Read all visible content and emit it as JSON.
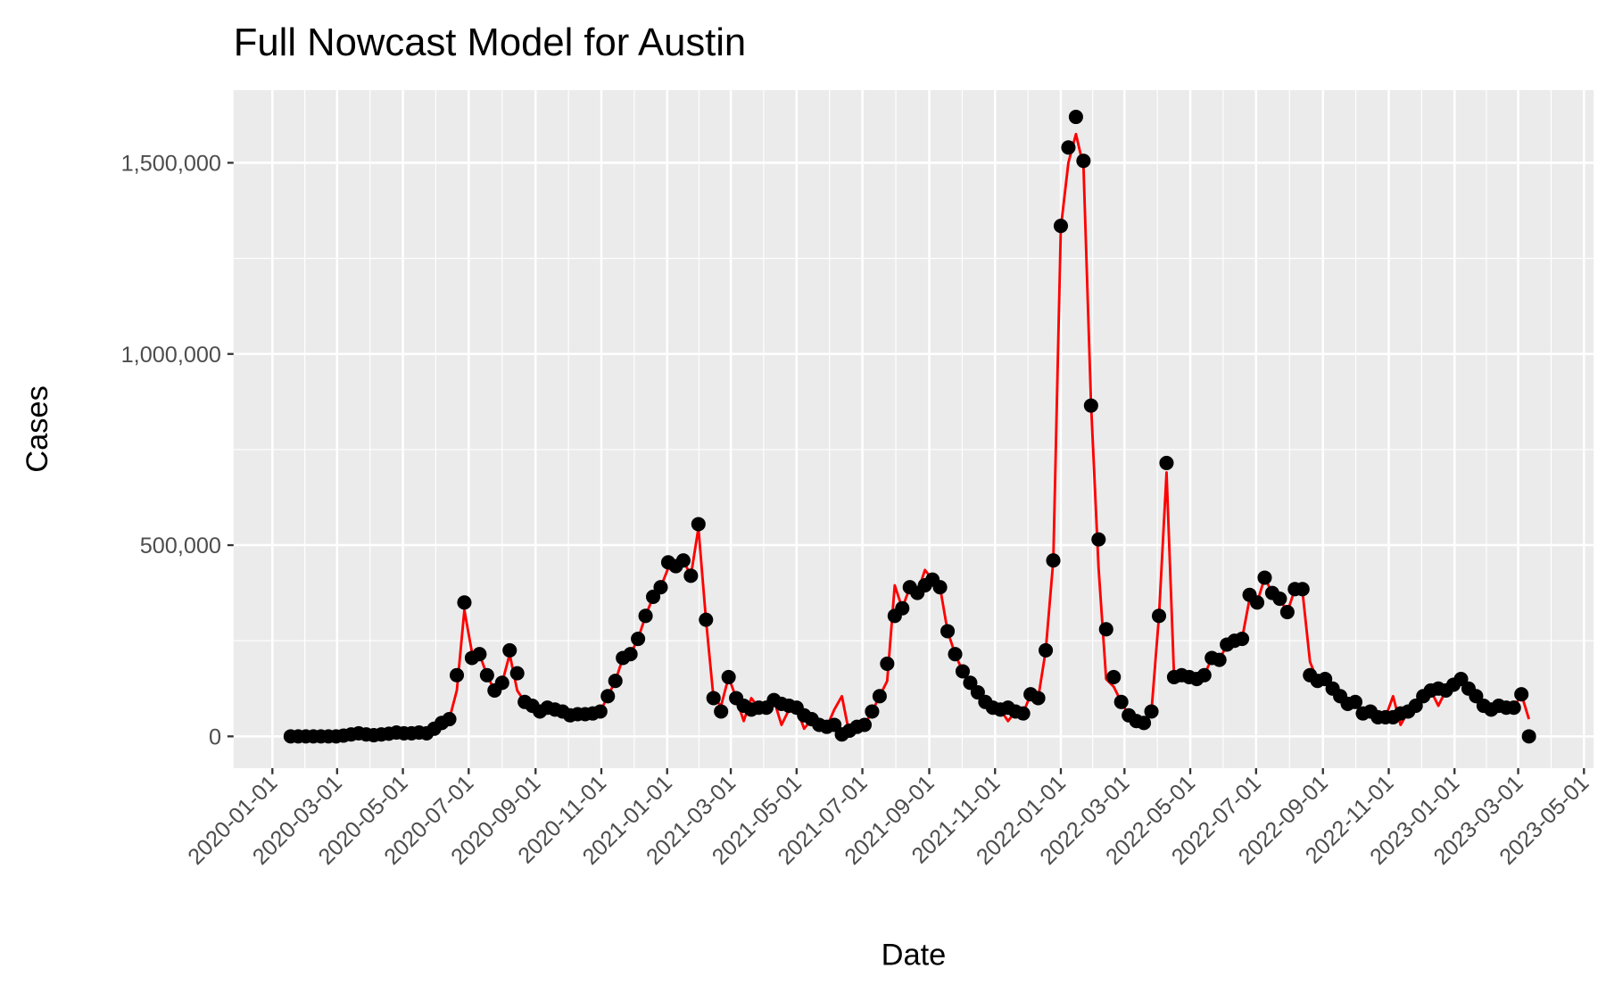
{
  "chart_data": {
    "type": "line",
    "title": "Full Nowcast Model for Austin",
    "x_label": "Date",
    "y_label": "Cases",
    "grid": true,
    "x": [
      "2020-01-18",
      "2020-01-25",
      "2020-02-01",
      "2020-02-08",
      "2020-02-15",
      "2020-02-22",
      "2020-02-29",
      "2020-03-07",
      "2020-03-14",
      "2020-03-21",
      "2020-03-28",
      "2020-04-04",
      "2020-04-11",
      "2020-04-18",
      "2020-04-25",
      "2020-05-02",
      "2020-05-09",
      "2020-05-16",
      "2020-05-23",
      "2020-05-30",
      "2020-06-06",
      "2020-06-13",
      "2020-06-20",
      "2020-06-27",
      "2020-07-04",
      "2020-07-11",
      "2020-07-18",
      "2020-07-25",
      "2020-08-01",
      "2020-08-08",
      "2020-08-15",
      "2020-08-22",
      "2020-08-29",
      "2020-09-05",
      "2020-09-12",
      "2020-09-19",
      "2020-09-26",
      "2020-10-03",
      "2020-10-10",
      "2020-10-17",
      "2020-10-24",
      "2020-10-31",
      "2020-11-07",
      "2020-11-14",
      "2020-11-21",
      "2020-11-28",
      "2020-12-05",
      "2020-12-12",
      "2020-12-19",
      "2020-12-26",
      "2021-01-02",
      "2021-01-09",
      "2021-01-16",
      "2021-01-23",
      "2021-01-30",
      "2021-02-06",
      "2021-02-13",
      "2021-02-20",
      "2021-02-27",
      "2021-03-06",
      "2021-03-13",
      "2021-03-20",
      "2021-03-27",
      "2021-04-03",
      "2021-04-10",
      "2021-04-17",
      "2021-04-24",
      "2021-05-01",
      "2021-05-08",
      "2021-05-15",
      "2021-05-22",
      "2021-05-29",
      "2021-06-05",
      "2021-06-12",
      "2021-06-19",
      "2021-06-26",
      "2021-07-03",
      "2021-07-10",
      "2021-07-17",
      "2021-07-24",
      "2021-07-31",
      "2021-08-07",
      "2021-08-14",
      "2021-08-21",
      "2021-08-28",
      "2021-09-04",
      "2021-09-11",
      "2021-09-18",
      "2021-09-25",
      "2021-10-02",
      "2021-10-09",
      "2021-10-16",
      "2021-10-23",
      "2021-10-30",
      "2021-11-06",
      "2021-11-13",
      "2021-11-20",
      "2021-11-27",
      "2021-12-04",
      "2021-12-11",
      "2021-12-18",
      "2021-12-25",
      "2022-01-01",
      "2022-01-08",
      "2022-01-15",
      "2022-01-22",
      "2022-01-29",
      "2022-02-05",
      "2022-02-12",
      "2022-02-19",
      "2022-02-26",
      "2022-03-05",
      "2022-03-12",
      "2022-03-19",
      "2022-03-26",
      "2022-04-02",
      "2022-04-09",
      "2022-04-16",
      "2022-04-23",
      "2022-04-30",
      "2022-05-07",
      "2022-05-14",
      "2022-05-21",
      "2022-05-28",
      "2022-06-04",
      "2022-06-11",
      "2022-06-18",
      "2022-06-25",
      "2022-07-02",
      "2022-07-09",
      "2022-07-16",
      "2022-07-23",
      "2022-07-30",
      "2022-08-06",
      "2022-08-13",
      "2022-08-20",
      "2022-08-27",
      "2022-09-03",
      "2022-09-10",
      "2022-09-17",
      "2022-09-24",
      "2022-10-01",
      "2022-10-08",
      "2022-10-15",
      "2022-10-22",
      "2022-10-29",
      "2022-11-05",
      "2022-11-12",
      "2022-11-19",
      "2022-11-26",
      "2022-12-03",
      "2022-12-10",
      "2022-12-17",
      "2022-12-24",
      "2022-12-31",
      "2023-01-07",
      "2023-01-14",
      "2023-01-21",
      "2023-01-28",
      "2023-02-04",
      "2023-02-11",
      "2023-02-18",
      "2023-02-25",
      "2023-03-04",
      "2023-03-11"
    ],
    "series": [
      {
        "mark": "line",
        "color": "#ff0000",
        "values": [
          0,
          0,
          0,
          0,
          0,
          0,
          0,
          2000,
          5000,
          8000,
          5000,
          3000,
          5000,
          7000,
          10000,
          8000,
          8000,
          10000,
          8000,
          20000,
          35000,
          45000,
          120000,
          330000,
          220000,
          215000,
          160000,
          120000,
          140000,
          215000,
          120000,
          90000,
          80000,
          50000,
          75000,
          70000,
          65000,
          55000,
          58000,
          58000,
          60000,
          65000,
          105000,
          145000,
          205000,
          215000,
          255000,
          315000,
          365000,
          390000,
          440000,
          445000,
          460000,
          420000,
          545000,
          305000,
          100000,
          80000,
          155000,
          100000,
          40000,
          100000,
          75000,
          75000,
          95000,
          30000,
          70000,
          75000,
          20000,
          45000,
          30000,
          25000,
          70000,
          105000,
          5000,
          25000,
          30000,
          65000,
          105000,
          145000,
          395000,
          335000,
          390000,
          375000,
          435000,
          410000,
          390000,
          275000,
          215000,
          170000,
          140000,
          115000,
          90000,
          75000,
          70000,
          40000,
          65000,
          60000,
          110000,
          100000,
          225000,
          460000,
          1330000,
          1500000,
          1575000,
          1490000,
          870000,
          440000,
          150000,
          130000,
          90000,
          55000,
          40000,
          35000,
          65000,
          315000,
          690000,
          155000,
          160000,
          155000,
          150000,
          160000,
          205000,
          200000,
          240000,
          250000,
          255000,
          360000,
          350000,
          415000,
          375000,
          360000,
          325000,
          385000,
          380000,
          195000,
          145000,
          150000,
          125000,
          105000,
          85000,
          90000,
          60000,
          65000,
          50000,
          50000,
          105000,
          30000,
          65000,
          95000,
          105000,
          120000,
          80000,
          120000,
          135000,
          150000,
          125000,
          105000,
          80000,
          70000,
          80000,
          75000,
          75000,
          110000,
          45000
        ]
      },
      {
        "mark": "point",
        "color": "#000000",
        "values": [
          0,
          0,
          0,
          0,
          0,
          0,
          0,
          2000,
          5000,
          8000,
          5000,
          3000,
          5000,
          7000,
          10000,
          8000,
          8000,
          10000,
          8000,
          20000,
          35000,
          45000,
          160000,
          350000,
          205000,
          215000,
          160000,
          120000,
          140000,
          225000,
          165000,
          90000,
          80000,
          65000,
          75000,
          70000,
          65000,
          55000,
          58000,
          58000,
          60000,
          65000,
          105000,
          145000,
          205000,
          215000,
          255000,
          315000,
          365000,
          390000,
          455000,
          445000,
          460000,
          420000,
          555000,
          305000,
          100000,
          65000,
          155000,
          100000,
          80000,
          70000,
          75000,
          75000,
          95000,
          85000,
          80000,
          75000,
          55000,
          45000,
          30000,
          25000,
          30000,
          5000,
          15000,
          25000,
          30000,
          65000,
          105000,
          190000,
          315000,
          335000,
          390000,
          375000,
          395000,
          410000,
          390000,
          275000,
          215000,
          170000,
          140000,
          115000,
          90000,
          75000,
          70000,
          75000,
          65000,
          60000,
          110000,
          100000,
          225000,
          460000,
          1335000,
          1540000,
          1620000,
          1505000,
          865000,
          515000,
          280000,
          155000,
          90000,
          55000,
          40000,
          35000,
          65000,
          315000,
          715000,
          155000,
          160000,
          155000,
          150000,
          160000,
          205000,
          200000,
          240000,
          250000,
          255000,
          370000,
          350000,
          415000,
          375000,
          360000,
          325000,
          385000,
          385000,
          160000,
          145000,
          150000,
          125000,
          105000,
          85000,
          90000,
          60000,
          65000,
          50000,
          50000,
          50000,
          60000,
          65000,
          80000,
          105000,
          120000,
          125000,
          120000,
          135000,
          150000,
          125000,
          105000,
          80000,
          70000,
          80000,
          75000,
          75000,
          110000,
          0
        ]
      }
    ],
    "xlim": [
      "2019-11-26",
      "2023-05-10"
    ],
    "xticks": [
      "2020-01-01",
      "2020-03-01",
      "2020-05-01",
      "2020-07-01",
      "2020-09-01",
      "2020-11-01",
      "2021-01-01",
      "2021-03-01",
      "2021-05-01",
      "2021-07-01",
      "2021-09-01",
      "2021-11-01",
      "2022-01-01",
      "2022-03-01",
      "2022-05-01",
      "2022-07-01",
      "2022-09-01",
      "2022-11-01",
      "2023-01-01",
      "2023-03-01",
      "2023-05-01"
    ],
    "ylim": [
      -83000,
      1690000
    ],
    "yticks": [
      0,
      {
        "value": 500000,
        "label": "500,000"
      },
      {
        "value": 1000000,
        "label": "1,000,000"
      },
      {
        "value": 1500000,
        "label": "1,500,000"
      }
    ]
  }
}
